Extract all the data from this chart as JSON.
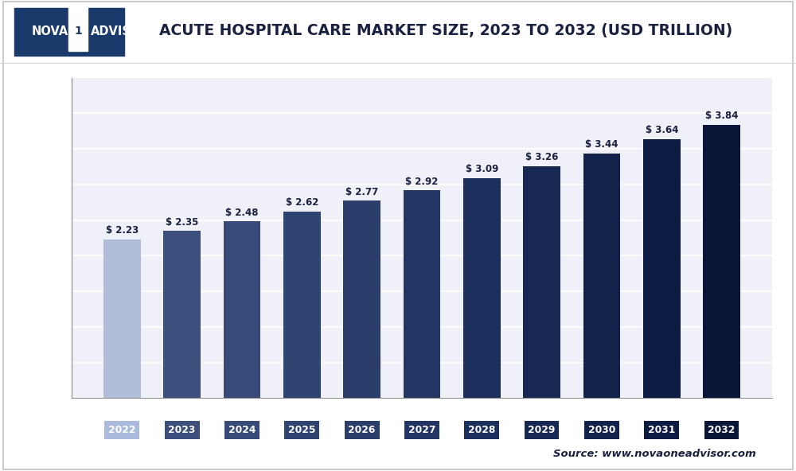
{
  "title": "ACUTE HOSPITAL CARE MARKET SIZE, 2023 TO 2032 (USD TRILLION)",
  "categories": [
    "2022",
    "2023",
    "2024",
    "2025",
    "2026",
    "2027",
    "2028",
    "2029",
    "2030",
    "2031",
    "2032"
  ],
  "values": [
    2.23,
    2.35,
    2.48,
    2.62,
    2.77,
    2.92,
    3.09,
    3.26,
    3.44,
    3.64,
    3.84
  ],
  "bar_colors": [
    "#b0bdd8",
    "#3d4f7c",
    "#374a78",
    "#304472",
    "#2a3d6b",
    "#233663",
    "#1d2f5c",
    "#172853",
    "#12224a",
    "#0d1c42",
    "#091638"
  ],
  "tick_label_colors": [
    "#aabbdd",
    "#3d4f7c",
    "#374a78",
    "#304472",
    "#2a3d6b",
    "#233663",
    "#1d2f5c",
    "#172853",
    "#12224a",
    "#0d1c42",
    "#091638"
  ],
  "ylim": [
    0,
    4.5
  ],
  "background_color": "#ffffff",
  "plot_bg_color": "#f0f0f8",
  "grid_color": "#ffffff",
  "bar_label_color": "#1a2040",
  "source_text": "Source: www.novaoneadvisor.com",
  "title_fontsize": 13.5,
  "bar_width": 0.62,
  "logo_bg_color": "#1a3a6b",
  "logo_text_color": "#ffffff",
  "header_line_color": "#cccccc",
  "outer_border_color": "#cccccc"
}
